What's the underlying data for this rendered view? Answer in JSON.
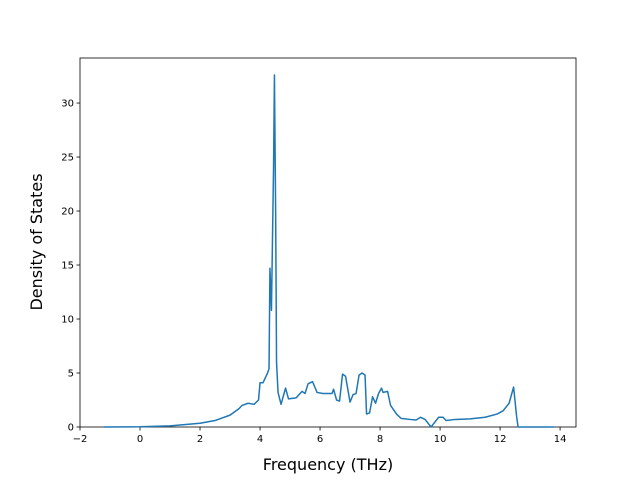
{
  "chart_data": {
    "type": "line",
    "xlabel": "Frequency (THz)",
    "ylabel": "Density of States",
    "xlim": [
      -2,
      14.53
    ],
    "ylim": [
      0,
      34.17
    ],
    "xticks": [
      {
        "value": -2,
        "label": "−2"
      },
      0,
      2,
      4,
      6,
      8,
      10,
      12,
      14
    ],
    "yticks": [
      0,
      5,
      10,
      15,
      20,
      25,
      30
    ],
    "series": [
      {
        "color": "#1f77b4",
        "x": [
          -1.2,
          0,
          1,
          2,
          2.5,
          3,
          3.3,
          3.4,
          3.6,
          3.8,
          3.95,
          4.0,
          4.1,
          4.25,
          4.3,
          4.33,
          4.38,
          4.45,
          4.48,
          4.52,
          4.55,
          4.6,
          4.7,
          4.85,
          4.95,
          5.2,
          5.4,
          5.5,
          5.6,
          5.75,
          5.9,
          6.1,
          6.4,
          6.45,
          6.55,
          6.65,
          6.75,
          6.85,
          7.0,
          7.1,
          7.2,
          7.3,
          7.4,
          7.5,
          7.55,
          7.65,
          7.75,
          7.85,
          7.95,
          8.05,
          8.1,
          8.25,
          8.35,
          8.55,
          8.7,
          9.0,
          9.2,
          9.35,
          9.5,
          9.7,
          9.95,
          10.1,
          10.2,
          10.5,
          11,
          11.5,
          11.9,
          12.1,
          12.3,
          12.45,
          12.55,
          12.6,
          13.8
        ],
        "values": [
          0,
          0.02,
          0.1,
          0.35,
          0.6,
          1.1,
          1.7,
          2.0,
          2.2,
          2.1,
          2.5,
          4.1,
          4.1,
          5.0,
          5.4,
          14.7,
          10.8,
          24,
          32.6,
          20,
          6,
          3.2,
          2.1,
          3.6,
          2.6,
          2.7,
          3.3,
          3.1,
          4.0,
          4.2,
          3.2,
          3.1,
          3.1,
          3.5,
          2.5,
          2.4,
          4.9,
          4.7,
          2.3,
          3.0,
          3.1,
          4.8,
          5.0,
          4.8,
          1.2,
          1.3,
          2.8,
          2.2,
          3.1,
          3.6,
          3.2,
          3.3,
          2.0,
          1.2,
          0.8,
          0.7,
          0.65,
          0.9,
          0.7,
          0.0,
          0.9,
          0.9,
          0.6,
          0.7,
          0.75,
          0.9,
          1.2,
          1.5,
          2.2,
          3.7,
          1.0,
          0,
          0
        ]
      }
    ]
  }
}
